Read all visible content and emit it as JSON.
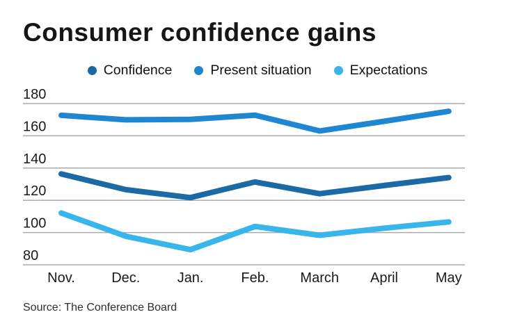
{
  "page": {
    "title": "Consumer confidence gains",
    "source": "Source: The Conference Board"
  },
  "legend": {
    "items": [
      {
        "label": "Confidence",
        "color": "#1b6aa5"
      },
      {
        "label": "Present situation",
        "color": "#1f86d2"
      },
      {
        "label": "Expectations",
        "color": "#38b5ea"
      }
    ]
  },
  "chart_data": {
    "type": "line",
    "title": "Consumer confidence gains",
    "categories": [
      "Nov.",
      "Dec.",
      "Jan.",
      "Feb.",
      "March",
      "April",
      "May"
    ],
    "series": [
      {
        "name": "Confidence",
        "color": "#1b6aa5",
        "values": [
          136.4,
          126.6,
          121.7,
          131.4,
          124.1,
          129.2,
          134.1
        ]
      },
      {
        "name": "Present situation",
        "color": "#1f86d2",
        "values": [
          172.7,
          169.9,
          170.2,
          172.8,
          163.0,
          169.0,
          175.2
        ]
      },
      {
        "name": "Expectations",
        "color": "#38b5ea",
        "values": [
          112.1,
          97.7,
          89.4,
          103.8,
          98.3,
          102.7,
          106.6
        ]
      }
    ],
    "xlabel": "",
    "ylabel": "",
    "ylim": [
      80,
      180
    ],
    "yticks": [
      180,
      160,
      140,
      120,
      100,
      80
    ],
    "grid": "horizontal",
    "gridline_color": "#aaaaaa",
    "legend_position": "top",
    "source": "Source: The Conference Board"
  }
}
